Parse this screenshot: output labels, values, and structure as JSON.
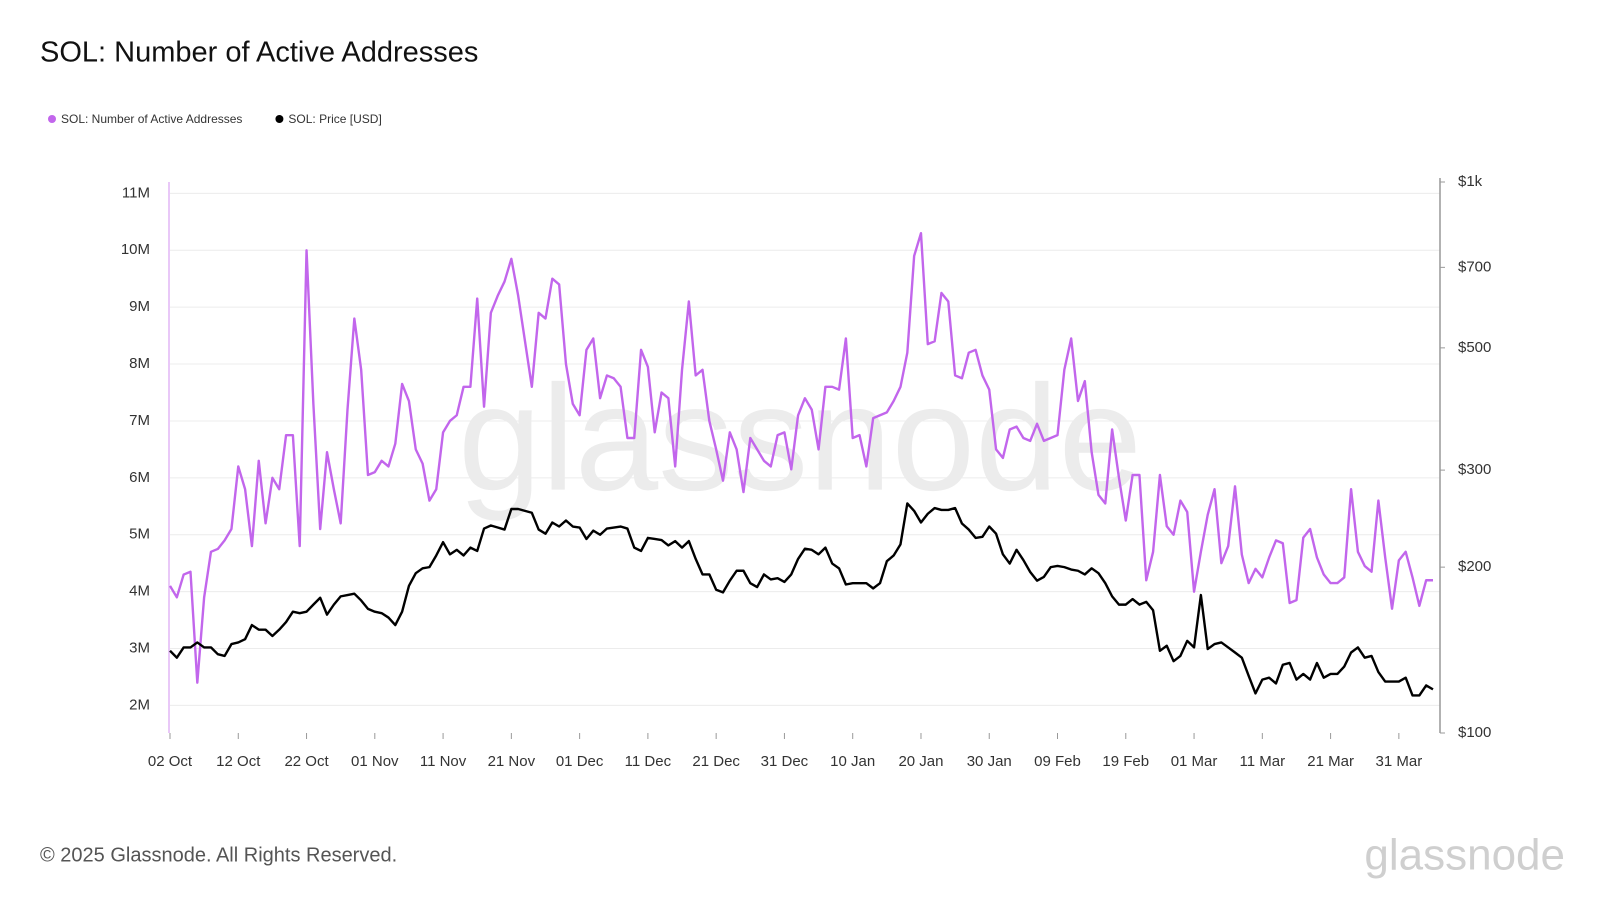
{
  "chart_data": {
    "type": "line",
    "title": "SOL: Number of Active Addresses",
    "categories": [
      "02 Oct",
      null,
      null,
      null,
      null,
      null,
      null,
      null,
      null,
      null,
      "12 Oct",
      null,
      null,
      null,
      null,
      null,
      null,
      null,
      null,
      null,
      "22 Oct",
      null,
      null,
      null,
      null,
      null,
      null,
      null,
      null,
      null,
      "01 Nov",
      null,
      null,
      null,
      null,
      null,
      null,
      null,
      null,
      null,
      "11 Nov",
      null,
      null,
      null,
      null,
      null,
      null,
      null,
      null,
      null,
      "21 Nov",
      null,
      null,
      null,
      null,
      null,
      null,
      null,
      null,
      null,
      "01 Dec",
      null,
      null,
      null,
      null,
      null,
      null,
      null,
      null,
      null,
      "11 Dec",
      null,
      null,
      null,
      null,
      null,
      null,
      null,
      null,
      null,
      "21 Dec",
      null,
      null,
      null,
      null,
      null,
      null,
      null,
      null,
      null,
      "31 Dec",
      null,
      null,
      null,
      null,
      null,
      null,
      null,
      null,
      null,
      "10 Jan",
      null,
      null,
      null,
      null,
      null,
      null,
      null,
      null,
      null,
      "20 Jan",
      null,
      null,
      null,
      null,
      null,
      null,
      null,
      null,
      null,
      "30 Jan",
      null,
      null,
      null,
      null,
      null,
      null,
      null,
      null,
      null,
      "09 Feb",
      null,
      null,
      null,
      null,
      null,
      null,
      null,
      null,
      null,
      "19 Feb",
      null,
      null,
      null,
      null,
      null,
      null,
      null,
      null,
      null,
      "01 Mar",
      null,
      null,
      null,
      null,
      null,
      null,
      null,
      null,
      null,
      "11 Mar",
      null,
      null,
      null,
      null,
      null,
      null,
      null,
      null,
      null,
      "21 Mar",
      null,
      null,
      null,
      null,
      null,
      null,
      null,
      null,
      null,
      "31 Mar",
      null,
      null,
      null,
      null,
      null
    ],
    "series": [
      {
        "name": "SOL: Number of Active Addresses",
        "color": "#c266ec",
        "values": [
          4100000,
          3900000,
          4300000,
          4350000,
          2400000,
          3900000,
          4700000,
          4750000,
          4900000,
          5100000,
          6200000,
          5800000,
          4800000,
          6300000,
          5200000,
          6000000,
          5800000,
          6750000,
          6750000,
          4800000,
          10000000,
          7300000,
          5100000,
          6450000,
          5800000,
          5200000,
          7200000,
          8800000,
          7900000,
          6050000,
          6100000,
          6300000,
          6200000,
          6600000,
          7650000,
          7350000,
          6500000,
          6250000,
          5600000,
          5800000,
          6800000,
          7000000,
          7100000,
          7600000,
          7600000,
          9150000,
          7250000,
          8900000,
          9200000,
          9450000,
          9850000,
          9200000,
          8400000,
          7600000,
          8900000,
          8800000,
          9500000,
          9400000,
          8000000,
          7300000,
          7100000,
          8250000,
          8450000,
          7400000,
          7800000,
          7750000,
          7600000,
          6700000,
          6700000,
          8250000,
          7950000,
          6800000,
          7500000,
          7400000,
          6200000,
          7900000,
          9100000,
          7800000,
          7900000,
          7000000,
          6500000,
          5950000,
          6800000,
          6500000,
          5750000,
          6700000,
          6500000,
          6300000,
          6200000,
          6750000,
          6800000,
          6150000,
          7100000,
          7400000,
          7200000,
          6500000,
          7600000,
          7600000,
          7550000,
          8450000,
          6700000,
          6750000,
          6200000,
          7050000,
          7100000,
          7150000,
          7350000,
          7600000,
          8200000,
          9900000,
          10300000,
          8350000,
          8400000,
          9250000,
          9100000,
          7800000,
          7750000,
          8200000,
          8250000,
          7800000,
          7550000,
          6500000,
          6350000,
          6850000,
          6900000,
          6700000,
          6650000,
          6950000,
          6650000,
          6700000,
          6750000,
          7900000,
          8450000,
          7350000,
          7700000,
          6450000,
          5700000,
          5550000,
          6850000,
          6000000,
          5250000,
          6050000,
          6050000,
          4200000,
          4700000,
          6050000,
          5150000,
          5000000,
          5600000,
          5400000,
          4000000,
          4700000,
          5350000,
          5800000,
          4500000,
          4800000,
          5850000,
          4650000,
          4150000,
          4400000,
          4250000,
          4600000,
          4900000,
          4850000,
          3800000,
          3850000,
          4950000,
          5100000,
          4600000,
          4300000,
          4150000,
          4150000,
          4250000,
          5800000,
          4700000,
          4450000,
          4350000,
          5600000,
          4600000,
          3700000,
          4550000,
          4700000,
          4250000,
          3750000,
          4200000,
          4200000
        ]
      },
      {
        "name": "SOL: Price [USD]",
        "color": "#000000",
        "axis": "y2",
        "values": [
          141,
          137,
          143,
          143,
          146,
          143,
          143,
          139,
          138,
          145,
          146,
          148,
          157,
          154,
          154,
          150,
          154,
          159,
          166,
          165,
          166,
          171,
          176,
          164,
          171,
          177,
          178,
          179,
          174,
          168,
          166,
          165,
          162,
          157,
          166,
          185,
          195,
          199,
          200,
          210,
          222,
          211,
          215,
          210,
          217,
          214,
          235,
          238,
          236,
          234,
          255,
          255,
          253,
          251,
          234,
          230,
          241,
          237,
          243,
          237,
          236,
          225,
          233,
          229,
          235,
          236,
          237,
          235,
          217,
          214,
          226,
          225,
          224,
          219,
          223,
          217,
          223,
          207,
          194,
          194,
          182,
          180,
          189,
          197,
          197,
          187,
          184,
          194,
          190,
          191,
          188,
          194,
          207,
          216,
          215,
          211,
          217,
          203,
          199,
          186,
          187,
          187,
          187,
          183,
          187,
          205,
          210,
          220,
          261,
          253,
          241,
          250,
          256,
          254,
          254,
          256,
          240,
          234,
          226,
          227,
          237,
          230,
          211,
          203,
          215,
          206,
          196,
          189,
          192,
          200,
          201,
          200,
          198,
          197,
          194,
          199,
          195,
          187,
          177,
          171,
          171,
          175,
          171,
          173,
          167,
          141,
          144,
          135,
          138,
          147,
          143,
          178,
          142,
          145,
          146,
          143,
          140,
          137,
          127,
          118,
          125,
          126,
          123,
          133,
          134,
          125,
          128,
          125,
          134,
          126,
          128,
          128,
          132,
          140,
          143,
          137,
          138,
          129,
          124,
          124,
          124,
          126,
          117,
          117,
          122,
          120
        ]
      }
    ],
    "ylim": [
      1515000,
      11200000
    ],
    "yticks": [
      {
        "value": 2000000,
        "label": "2M"
      },
      {
        "value": 3000000,
        "label": "3M"
      },
      {
        "value": 4000000,
        "label": "4M"
      },
      {
        "value": 5000000,
        "label": "5M"
      },
      {
        "value": 6000000,
        "label": "6M"
      },
      {
        "value": 7000000,
        "label": "7M"
      },
      {
        "value": 8000000,
        "label": "8M"
      },
      {
        "value": 9000000,
        "label": "9M"
      },
      {
        "value": 10000000,
        "label": "10M"
      },
      {
        "value": 11000000,
        "label": "11M"
      }
    ],
    "y2lim": [
      100,
      1000
    ],
    "y2scale": "log",
    "y2ticks": [
      {
        "value": 100,
        "label": "$100"
      },
      {
        "value": 200,
        "label": "$200"
      },
      {
        "value": 300,
        "label": "$300"
      },
      {
        "value": 500,
        "label": "$500"
      },
      {
        "value": 700,
        "label": "$700"
      },
      {
        "value": 1000,
        "label": "$1k"
      }
    ],
    "grid": true,
    "legend": "top-left"
  },
  "watermark": "glassnode",
  "footer": {
    "copyright": "© 2025 Glassnode. All Rights Reserved.",
    "logo": "glassnode"
  }
}
